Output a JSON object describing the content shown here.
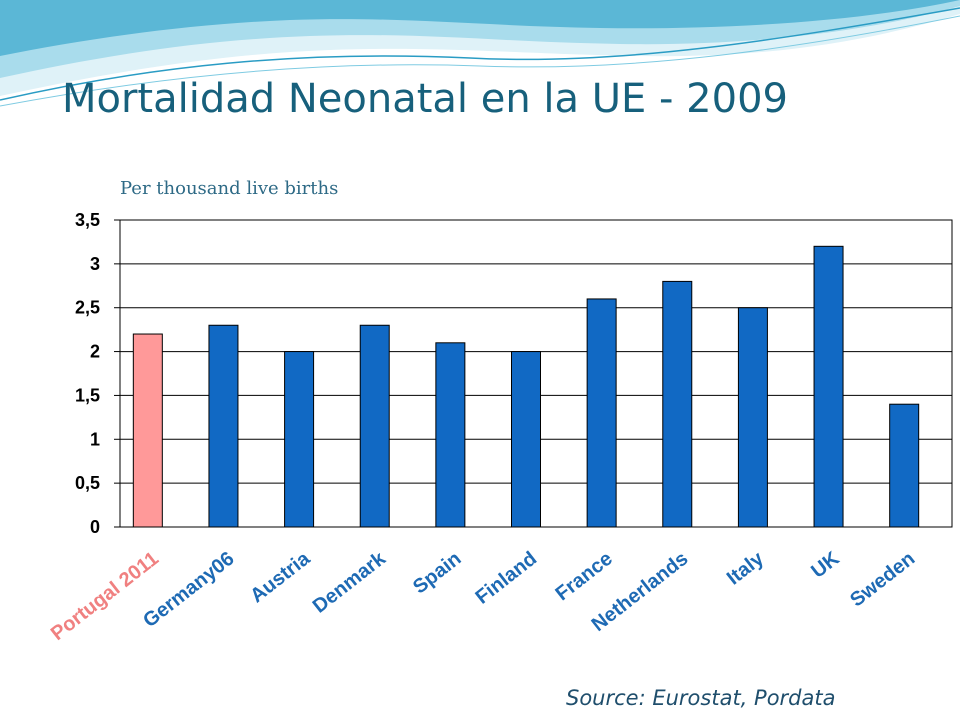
{
  "slide": {
    "title": "Mortalidad Neonatal en la UE - 2009",
    "source": "Source: Eurostat, Pordata"
  },
  "colors": {
    "title": "#17607c",
    "highlight_bar": "#ff9999",
    "bar": "#1169c4",
    "xtick_label": "#1e6ab4",
    "xtick_label_highlight": "#f08080"
  },
  "chart_data": {
    "type": "bar",
    "subtitle": "Per thousand live births",
    "categories": [
      "Portugal 2011",
      "Germany06",
      "Austria",
      "Denmark",
      "Spain",
      "Finland",
      "France",
      "Netherlands",
      "Italy",
      "UK",
      "Sweden"
    ],
    "values": [
      2.2,
      2.3,
      2.0,
      2.3,
      2.1,
      2.0,
      2.6,
      2.8,
      2.5,
      3.2,
      1.4
    ],
    "highlight_index": 0,
    "ylim": [
      0,
      3.5
    ],
    "yticks": [
      "0",
      "0,5",
      "1",
      "1,5",
      "2",
      "2,5",
      "3",
      "3,5"
    ],
    "grid": true,
    "legend": "none"
  }
}
